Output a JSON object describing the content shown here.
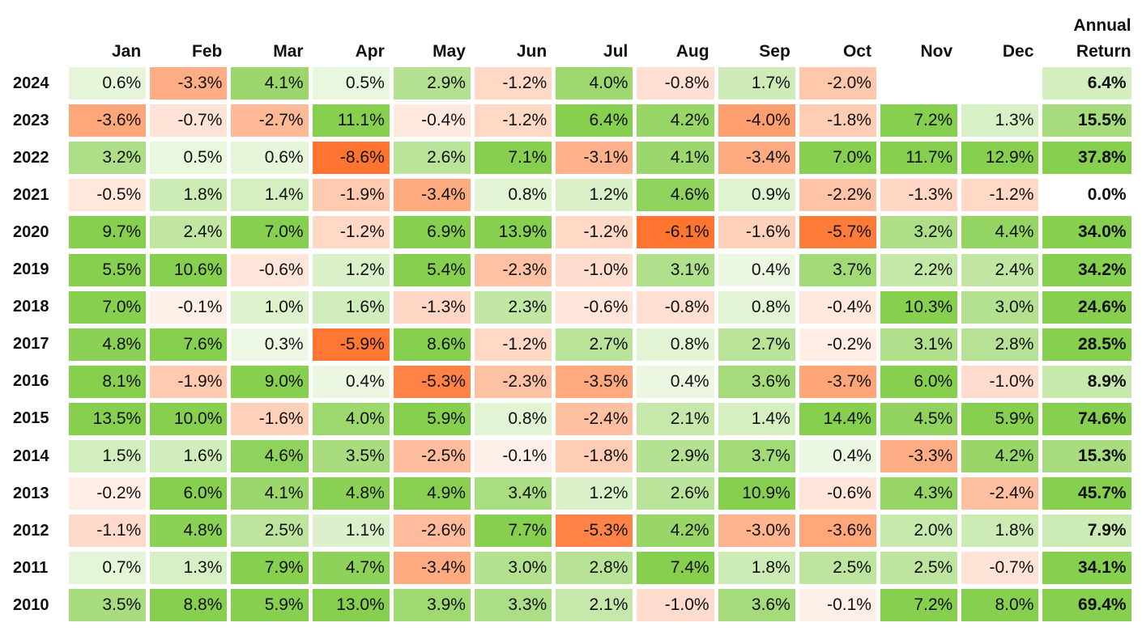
{
  "chart_data": {
    "type": "heatmap",
    "columns": [
      "Jan",
      "Feb",
      "Mar",
      "Apr",
      "May",
      "Jun",
      "Jul",
      "Aug",
      "Sep",
      "Oct",
      "Nov",
      "Dec"
    ],
    "annual_header": [
      "Annual",
      "Return"
    ],
    "rows": [
      {
        "year": "2024",
        "values": [
          "0.6%",
          "-3.3%",
          "4.1%",
          "0.5%",
          "2.9%",
          "-1.2%",
          "4.0%",
          "-0.8%",
          "1.7%",
          "-2.0%",
          null,
          null
        ],
        "annual": "6.4%"
      },
      {
        "year": "2023",
        "values": [
          "-3.6%",
          "-0.7%",
          "-2.7%",
          "11.1%",
          "-0.4%",
          "-1.2%",
          "6.4%",
          "4.2%",
          "-4.0%",
          "-1.8%",
          "7.2%",
          "1.3%"
        ],
        "annual": "15.5%"
      },
      {
        "year": "2022",
        "values": [
          "3.2%",
          "0.5%",
          "0.6%",
          "-8.6%",
          "2.6%",
          "7.1%",
          "-3.1%",
          "4.1%",
          "-3.4%",
          "7.0%",
          "11.7%",
          "12.9%"
        ],
        "annual": "37.8%"
      },
      {
        "year": "2021",
        "values": [
          "-0.5%",
          "1.8%",
          "1.4%",
          "-1.9%",
          "-3.4%",
          "0.8%",
          "1.2%",
          "4.6%",
          "0.9%",
          "-2.2%",
          "-1.3%",
          "-1.2%"
        ],
        "annual": "0.0%"
      },
      {
        "year": "2020",
        "values": [
          "9.7%",
          "2.4%",
          "7.0%",
          "-1.2%",
          "6.9%",
          "13.9%",
          "-1.2%",
          "-6.1%",
          "-1.6%",
          "-5.7%",
          "3.2%",
          "4.4%"
        ],
        "annual": "34.0%"
      },
      {
        "year": "2019",
        "values": [
          "5.5%",
          "10.6%",
          "-0.6%",
          "1.2%",
          "5.4%",
          "-2.3%",
          "-1.0%",
          "3.1%",
          "0.4%",
          "3.7%",
          "2.2%",
          "2.4%"
        ],
        "annual": "34.2%"
      },
      {
        "year": "2018",
        "values": [
          "7.0%",
          "-0.1%",
          "1.0%",
          "1.6%",
          "-1.3%",
          "2.3%",
          "-0.6%",
          "-0.8%",
          "0.8%",
          "-0.4%",
          "10.3%",
          "3.0%"
        ],
        "annual": "24.6%"
      },
      {
        "year": "2017",
        "values": [
          "4.8%",
          "7.6%",
          "0.3%",
          "-5.9%",
          "8.6%",
          "-1.2%",
          "2.7%",
          "0.8%",
          "2.7%",
          "-0.2%",
          "3.1%",
          "2.8%"
        ],
        "annual": "28.5%"
      },
      {
        "year": "2016",
        "values": [
          "8.1%",
          "-1.9%",
          "9.0%",
          "0.4%",
          "-5.3%",
          "-2.3%",
          "-3.5%",
          "0.4%",
          "3.6%",
          "-3.7%",
          "6.0%",
          "-1.0%"
        ],
        "annual": "8.9%"
      },
      {
        "year": "2015",
        "values": [
          "13.5%",
          "10.0%",
          "-1.6%",
          "4.0%",
          "5.9%",
          "0.8%",
          "-2.4%",
          "2.1%",
          "1.4%",
          "14.4%",
          "4.5%",
          "5.9%"
        ],
        "annual": "74.6%"
      },
      {
        "year": "2014",
        "values": [
          "1.5%",
          "1.6%",
          "4.6%",
          "3.5%",
          "-2.5%",
          "-0.1%",
          "-1.8%",
          "2.9%",
          "3.7%",
          "0.4%",
          "-3.3%",
          "4.2%"
        ],
        "annual": "15.3%"
      },
      {
        "year": "2013",
        "values": [
          "-0.2%",
          "6.0%",
          "4.1%",
          "4.8%",
          "4.9%",
          "3.4%",
          "1.2%",
          "2.6%",
          "10.9%",
          "-0.6%",
          "4.3%",
          "-2.4%"
        ],
        "annual": "45.7%"
      },
      {
        "year": "2012",
        "values": [
          "-1.1%",
          "4.8%",
          "2.5%",
          "1.1%",
          "-2.6%",
          "7.7%",
          "-5.3%",
          "4.2%",
          "-3.0%",
          "-3.6%",
          "2.0%",
          "1.8%"
        ],
        "annual": "7.9%"
      },
      {
        "year": "2011",
        "values": [
          "0.7%",
          "1.3%",
          "7.9%",
          "4.7%",
          "-3.4%",
          "3.0%",
          "2.8%",
          "7.4%",
          "1.8%",
          "2.5%",
          "2.5%",
          "-0.7%"
        ],
        "annual": "34.1%"
      },
      {
        "year": "2010",
        "values": [
          "3.5%",
          "8.8%",
          "5.9%",
          "13.0%",
          "3.9%",
          "3.3%",
          "2.1%",
          "-1.0%",
          "3.6%",
          "-0.1%",
          "7.2%",
          "8.0%"
        ],
        "annual": "69.4%"
      }
    ],
    "colors": {
      "negative_strong": "#ff7530",
      "negative_weak": "#fff1ec",
      "positive_weak": "#f4fbee",
      "positive_strong": "#87cf4f",
      "neutral": "#ffffff"
    },
    "monthly_scale": {
      "neg_full": 6.0,
      "pos_full": 5.0
    },
    "annual_scale": {
      "pos_full": 22.0
    }
  }
}
